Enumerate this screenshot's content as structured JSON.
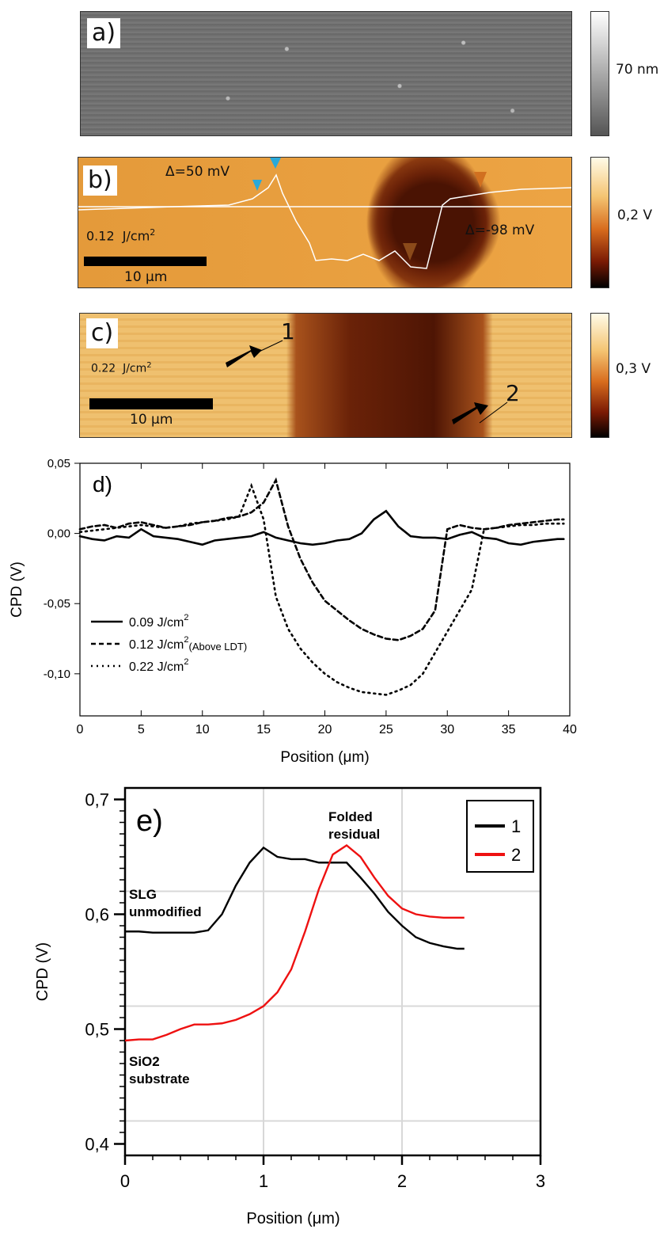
{
  "panel_a": {
    "label": "a)",
    "colorbar_label": "70 nm"
  },
  "panel_b": {
    "label": "b)",
    "fluence": "0.12",
    "fluence_unit": "J/cm",
    "fluence_exp": "2",
    "delta_pos": "Δ=50 mV",
    "delta_neg": "Δ=-98 mV",
    "scalebar": "10 μm",
    "colorbar_label": "0,2 V"
  },
  "panel_c": {
    "label": "c)",
    "fluence": "0.22",
    "fluence_unit": "J/cm",
    "fluence_exp": "2",
    "scalebar": "10 μm",
    "colorbar_label": "0,3 V",
    "marker_1": "1",
    "marker_2": "2"
  },
  "panel_d": {
    "label": "d)"
  },
  "panel_e": {
    "label": "e)",
    "annot_folded": "Folded\nresidual",
    "annot_slg": "SLG\nunmodified",
    "annot_sio2": "SiO2\nsubstrate"
  },
  "chart_data": [
    {
      "type": "line",
      "xlabel": "Position (μm)",
      "ylabel": "CPD (V)",
      "xlim": [
        0,
        40
      ],
      "ylim": [
        -0.13,
        0.05
      ],
      "xticks": [
        "0",
        "5",
        "10",
        "15",
        "20",
        "25",
        "30",
        "35",
        "40"
      ],
      "yticks": [
        "0,05",
        "0,00",
        "-0,05",
        "-0,10"
      ],
      "series": [
        {
          "name": "0.09 J/cm",
          "name_exp": "2",
          "style": "solid",
          "x": [
            0,
            1,
            2,
            3,
            4,
            5,
            6,
            7,
            8,
            9,
            10,
            11,
            12,
            13,
            14,
            15,
            16,
            17,
            18,
            19,
            20,
            21,
            22,
            23,
            24,
            25,
            26,
            27,
            28,
            29,
            30,
            31,
            32,
            33,
            34,
            35,
            36,
            37,
            38,
            39,
            39.5
          ],
          "y": [
            -0.002,
            -0.004,
            -0.005,
            -0.002,
            -0.003,
            0.003,
            -0.002,
            -0.003,
            -0.004,
            -0.006,
            -0.008,
            -0.005,
            -0.004,
            -0.003,
            -0.002,
            0.001,
            -0.003,
            -0.005,
            -0.007,
            -0.008,
            -0.007,
            -0.005,
            -0.004,
            0.0,
            0.01,
            0.016,
            0.005,
            -0.002,
            -0.003,
            -0.003,
            -0.004,
            -0.001,
            0.001,
            -0.003,
            -0.004,
            -0.007,
            -0.008,
            -0.006,
            -0.005,
            -0.004,
            -0.004
          ]
        },
        {
          "name": "0.12 J/cm",
          "name_exp": "2",
          "name_note": "(Above LDT)",
          "style": "dashed",
          "x": [
            0,
            1,
            2,
            3,
            4,
            5,
            6,
            7,
            8,
            9,
            10,
            11,
            12,
            13,
            14,
            15,
            16,
            17,
            18,
            19,
            20,
            21,
            22,
            23,
            24,
            25,
            26,
            27,
            28,
            29,
            30,
            31,
            32,
            33,
            34,
            35,
            36,
            37,
            38,
            39,
            39.5
          ],
          "y": [
            0.003,
            0.005,
            0.006,
            0.004,
            0.007,
            0.008,
            0.006,
            0.004,
            0.005,
            0.006,
            0.008,
            0.009,
            0.011,
            0.012,
            0.015,
            0.022,
            0.038,
            0.005,
            -0.018,
            -0.035,
            -0.048,
            -0.055,
            -0.062,
            -0.068,
            -0.072,
            -0.075,
            -0.076,
            -0.073,
            -0.068,
            -0.055,
            0.003,
            0.006,
            0.004,
            0.003,
            0.004,
            0.006,
            0.007,
            0.008,
            0.009,
            0.01,
            0.01
          ]
        },
        {
          "name": "0.22 J/cm",
          "name_exp": "2",
          "style": "dotted",
          "x": [
            0,
            1,
            2,
            3,
            4,
            5,
            6,
            7,
            8,
            9,
            10,
            11,
            12,
            13,
            14,
            15,
            16,
            17,
            18,
            19,
            20,
            21,
            22,
            23,
            24,
            25,
            26,
            27,
            28,
            29,
            30,
            31,
            32,
            33,
            34,
            35,
            36,
            37,
            38,
            39,
            39.5
          ],
          "y": [
            0.001,
            0.002,
            0.003,
            0.004,
            0.005,
            0.006,
            0.005,
            0.004,
            0.005,
            0.007,
            0.008,
            0.009,
            0.01,
            0.012,
            0.034,
            0.01,
            -0.045,
            -0.068,
            -0.082,
            -0.092,
            -0.1,
            -0.106,
            -0.11,
            -0.113,
            -0.114,
            -0.115,
            -0.112,
            -0.108,
            -0.1,
            -0.085,
            -0.07,
            -0.055,
            -0.04,
            0.003,
            0.004,
            0.005,
            0.006,
            0.006,
            0.007,
            0.007,
            0.007
          ]
        }
      ]
    },
    {
      "type": "line",
      "xlabel": "Position (μm)",
      "ylabel": "CPD (V)",
      "xlim": [
        0,
        3
      ],
      "ylim": [
        0.39,
        0.71
      ],
      "xticks": [
        "0",
        "1",
        "2",
        "3"
      ],
      "yticks": [
        "0,7",
        "0,6",
        "0,5",
        "0,4"
      ],
      "legend": "top-right",
      "series": [
        {
          "name": "1",
          "color": "#000000",
          "x": [
            0,
            0.1,
            0.2,
            0.3,
            0.4,
            0.5,
            0.6,
            0.7,
            0.8,
            0.9,
            1.0,
            1.1,
            1.2,
            1.3,
            1.4,
            1.5,
            1.6,
            1.7,
            1.8,
            1.9,
            2.0,
            2.1,
            2.2,
            2.3,
            2.4,
            2.45
          ],
          "y": [
            0.585,
            0.585,
            0.584,
            0.584,
            0.584,
            0.584,
            0.586,
            0.6,
            0.625,
            0.645,
            0.658,
            0.65,
            0.648,
            0.648,
            0.645,
            0.645,
            0.645,
            0.632,
            0.618,
            0.602,
            0.59,
            0.58,
            0.575,
            0.572,
            0.57,
            0.57
          ]
        },
        {
          "name": "2",
          "color": "#ee1111",
          "x": [
            0,
            0.1,
            0.2,
            0.3,
            0.4,
            0.5,
            0.6,
            0.7,
            0.8,
            0.9,
            1.0,
            1.1,
            1.2,
            1.3,
            1.4,
            1.5,
            1.6,
            1.7,
            1.8,
            1.9,
            2.0,
            2.1,
            2.2,
            2.3,
            2.4,
            2.45
          ],
          "y": [
            0.49,
            0.491,
            0.491,
            0.495,
            0.5,
            0.504,
            0.504,
            0.505,
            0.508,
            0.513,
            0.52,
            0.532,
            0.552,
            0.585,
            0.622,
            0.652,
            0.66,
            0.65,
            0.632,
            0.616,
            0.605,
            0.6,
            0.598,
            0.597,
            0.597,
            0.597
          ]
        }
      ]
    }
  ]
}
